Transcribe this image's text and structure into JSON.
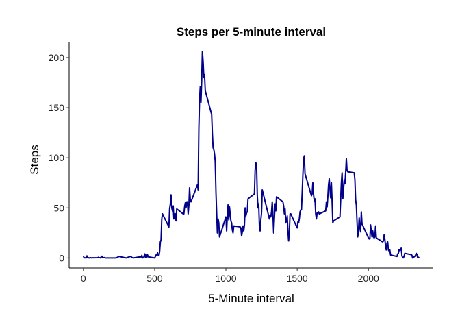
{
  "chart_data": {
    "type": "line",
    "title": "Steps per 5-minute interval",
    "xlabel": "5-Minute interval",
    "ylabel": "Steps",
    "xlim": [
      -100,
      2455
    ],
    "ylim": [
      -10,
      215
    ],
    "xticks": [
      0,
      500,
      1000,
      1500,
      2000
    ],
    "yticks": [
      0,
      50,
      100,
      150,
      200
    ],
    "grid": false,
    "legend": "none",
    "series": [
      {
        "color": "#00008B",
        "points": [
          [
            0,
            1.7
          ],
          [
            5,
            0.3
          ],
          [
            10,
            0.1
          ],
          [
            15,
            0.2
          ],
          [
            20,
            0.1
          ],
          [
            25,
            2.1
          ],
          [
            30,
            0.5
          ],
          [
            40,
            0
          ],
          [
            50,
            0.3
          ],
          [
            55,
            0.1
          ],
          [
            100,
            0.3
          ],
          [
            105,
            0.7
          ],
          [
            110,
            0.2
          ],
          [
            115,
            0.3
          ],
          [
            120,
            0
          ],
          [
            125,
            1.1
          ],
          [
            130,
            1.8
          ],
          [
            135,
            0.2
          ],
          [
            140,
            0.2
          ],
          [
            145,
            0.4
          ],
          [
            150,
            0.3
          ],
          [
            155,
            0
          ],
          [
            200,
            0
          ],
          [
            230,
            0
          ],
          [
            250,
            1.5
          ],
          [
            300,
            0
          ],
          [
            330,
            1.6
          ],
          [
            340,
            0.6
          ],
          [
            350,
            0
          ],
          [
            400,
            1.2
          ],
          [
            405,
            0.9
          ],
          [
            410,
            2.6
          ],
          [
            415,
            0
          ],
          [
            420,
            0.3
          ],
          [
            425,
            1.1
          ],
          [
            430,
            4.1
          ],
          [
            435,
            0.7
          ],
          [
            440,
            3.5
          ],
          [
            445,
            0.8
          ],
          [
            450,
            3.1
          ],
          [
            455,
            1.1
          ],
          [
            500,
            0
          ],
          [
            505,
            1.5
          ],
          [
            510,
            3
          ],
          [
            515,
            2.2
          ],
          [
            520,
            5.3
          ],
          [
            525,
            3
          ],
          [
            530,
            2.3
          ],
          [
            535,
            6.4
          ],
          [
            540,
            16
          ],
          [
            545,
            18
          ],
          [
            550,
            39
          ],
          [
            555,
            44
          ],
          [
            600,
            31
          ],
          [
            605,
            49
          ],
          [
            610,
            54
          ],
          [
            615,
            63
          ],
          [
            620,
            50
          ],
          [
            625,
            47
          ],
          [
            630,
            52
          ],
          [
            635,
            39
          ],
          [
            640,
            44
          ],
          [
            645,
            44
          ],
          [
            650,
            37
          ],
          [
            655,
            49
          ],
          [
            700,
            44
          ],
          [
            705,
            44
          ],
          [
            710,
            51
          ],
          [
            715,
            55
          ],
          [
            720,
            50
          ],
          [
            725,
            56
          ],
          [
            730,
            56
          ],
          [
            735,
            44
          ],
          [
            740,
            52
          ],
          [
            745,
            70
          ],
          [
            750,
            58
          ],
          [
            755,
            56
          ],
          [
            800,
            73
          ],
          [
            805,
            68
          ],
          [
            810,
            129
          ],
          [
            815,
            158
          ],
          [
            820,
            171
          ],
          [
            825,
            155
          ],
          [
            830,
            177
          ],
          [
            835,
            206
          ],
          [
            840,
            196
          ],
          [
            845,
            180
          ],
          [
            850,
            183
          ],
          [
            855,
            167
          ],
          [
            900,
            143
          ],
          [
            905,
            124
          ],
          [
            910,
            110
          ],
          [
            915,
            108
          ],
          [
            920,
            104
          ],
          [
            925,
            96
          ],
          [
            930,
            66
          ],
          [
            935,
            45
          ],
          [
            940,
            25
          ],
          [
            945,
            39
          ],
          [
            950,
            35
          ],
          [
            955,
            21
          ],
          [
            1000,
            41
          ],
          [
            1005,
            27
          ],
          [
            1010,
            42
          ],
          [
            1015,
            53
          ],
          [
            1020,
            38
          ],
          [
            1025,
            51
          ],
          [
            1030,
            44
          ],
          [
            1035,
            37
          ],
          [
            1040,
            35
          ],
          [
            1045,
            28
          ],
          [
            1050,
            25
          ],
          [
            1055,
            32
          ],
          [
            1100,
            31
          ],
          [
            1105,
            30
          ],
          [
            1110,
            22
          ],
          [
            1115,
            26
          ],
          [
            1120,
            32
          ],
          [
            1125,
            27
          ],
          [
            1130,
            33
          ],
          [
            1135,
            50
          ],
          [
            1140,
            42
          ],
          [
            1145,
            45
          ],
          [
            1150,
            46
          ],
          [
            1155,
            59
          ],
          [
            1200,
            64
          ],
          [
            1205,
            88
          ],
          [
            1210,
            95
          ],
          [
            1215,
            93
          ],
          [
            1220,
            63
          ],
          [
            1225,
            50
          ],
          [
            1230,
            54
          ],
          [
            1235,
            32
          ],
          [
            1240,
            27
          ],
          [
            1245,
            38
          ],
          [
            1250,
            45
          ],
          [
            1255,
            68
          ],
          [
            1300,
            42
          ],
          [
            1305,
            39
          ],
          [
            1310,
            43
          ],
          [
            1315,
            41
          ],
          [
            1320,
            46
          ],
          [
            1325,
            56
          ],
          [
            1330,
            43
          ],
          [
            1335,
            25
          ],
          [
            1340,
            40
          ],
          [
            1345,
            54
          ],
          [
            1350,
            47
          ],
          [
            1355,
            61
          ],
          [
            1400,
            56
          ],
          [
            1405,
            52
          ],
          [
            1410,
            44
          ],
          [
            1415,
            49
          ],
          [
            1420,
            35
          ],
          [
            1425,
            37
          ],
          [
            1430,
            42
          ],
          [
            1435,
            27
          ],
          [
            1440,
            17
          ],
          [
            1445,
            26
          ],
          [
            1450,
            44
          ],
          [
            1455,
            44
          ],
          [
            1500,
            30
          ],
          [
            1505,
            36
          ],
          [
            1510,
            35
          ],
          [
            1515,
            39
          ],
          [
            1520,
            46
          ],
          [
            1525,
            48
          ],
          [
            1530,
            48
          ],
          [
            1535,
            65
          ],
          [
            1540,
            83
          ],
          [
            1545,
            99
          ],
          [
            1550,
            102
          ],
          [
            1555,
            84
          ],
          [
            1600,
            62
          ],
          [
            1605,
            64
          ],
          [
            1610,
            75
          ],
          [
            1615,
            63
          ],
          [
            1620,
            57
          ],
          [
            1625,
            59
          ],
          [
            1630,
            44
          ],
          [
            1635,
            39
          ],
          [
            1640,
            45
          ],
          [
            1645,
            45
          ],
          [
            1650,
            46
          ],
          [
            1655,
            44
          ],
          [
            1700,
            47
          ],
          [
            1705,
            56
          ],
          [
            1710,
            51
          ],
          [
            1715,
            61
          ],
          [
            1720,
            73
          ],
          [
            1725,
            79
          ],
          [
            1730,
            69
          ],
          [
            1735,
            60
          ],
          [
            1740,
            75
          ],
          [
            1745,
            57
          ],
          [
            1750,
            35
          ],
          [
            1755,
            37
          ],
          [
            1800,
            41
          ],
          [
            1805,
            58
          ],
          [
            1810,
            75
          ],
          [
            1815,
            85
          ],
          [
            1820,
            59
          ],
          [
            1825,
            68
          ],
          [
            1830,
            78
          ],
          [
            1835,
            74
          ],
          [
            1840,
            85
          ],
          [
            1845,
            99
          ],
          [
            1850,
            87
          ],
          [
            1855,
            86
          ],
          [
            1900,
            85
          ],
          [
            1905,
            78
          ],
          [
            1910,
            58
          ],
          [
            1915,
            53
          ],
          [
            1920,
            36
          ],
          [
            1925,
            21
          ],
          [
            1930,
            27
          ],
          [
            1935,
            40
          ],
          [
            1940,
            30
          ],
          [
            1945,
            26
          ],
          [
            1950,
            46
          ],
          [
            1955,
            34
          ],
          [
            2000,
            20
          ],
          [
            2005,
            19
          ],
          [
            2010,
            19
          ],
          [
            2015,
            33
          ],
          [
            2020,
            27
          ],
          [
            2025,
            21
          ],
          [
            2030,
            27
          ],
          [
            2035,
            21
          ],
          [
            2040,
            20
          ],
          [
            2045,
            21
          ],
          [
            2050,
            32
          ],
          [
            2055,
            20
          ],
          [
            2100,
            16
          ],
          [
            2105,
            17
          ],
          [
            2110,
            23
          ],
          [
            2115,
            19
          ],
          [
            2120,
            12
          ],
          [
            2125,
            8
          ],
          [
            2130,
            15
          ],
          [
            2135,
            16
          ],
          [
            2140,
            8
          ],
          [
            2145,
            7
          ],
          [
            2150,
            8
          ],
          [
            2155,
            3
          ],
          [
            2200,
            1.5
          ],
          [
            2205,
            4
          ],
          [
            2210,
            4.8
          ],
          [
            2215,
            8.5
          ],
          [
            2220,
            7.5
          ],
          [
            2225,
            8.1
          ],
          [
            2230,
            9.8
          ],
          [
            2235,
            2.2
          ],
          [
            2240,
            0.3
          ],
          [
            2245,
            0.1
          ],
          [
            2250,
            1.6
          ],
          [
            2255,
            4.6
          ],
          [
            2300,
            3.3
          ],
          [
            2305,
            2.8
          ],
          [
            2310,
            0
          ],
          [
            2315,
            0.8
          ],
          [
            2320,
            1
          ],
          [
            2325,
            1.6
          ],
          [
            2330,
            2.6
          ],
          [
            2335,
            4.7
          ],
          [
            2340,
            3.3
          ],
          [
            2345,
            0.6
          ],
          [
            2350,
            0.2
          ],
          [
            2355,
            1.1
          ]
        ]
      }
    ]
  }
}
